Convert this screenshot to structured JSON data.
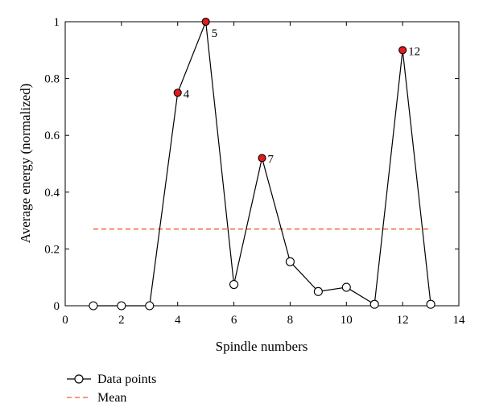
{
  "chart_data": {
    "type": "line",
    "xlabel": "Spindle numbers",
    "ylabel": "Average energy (normalized)",
    "xlim": [
      0,
      14
    ],
    "ylim": [
      0,
      1
    ],
    "xticks": [
      0,
      2,
      4,
      6,
      8,
      10,
      12,
      14
    ],
    "yticks": [
      0,
      0.2,
      0.4,
      0.6,
      0.8,
      1
    ],
    "xtick_labels": [
      "0",
      "2",
      "4",
      "6",
      "8",
      "10",
      "12",
      "14"
    ],
    "ytick_labels": [
      "0",
      "0.2",
      "0.4",
      "0.6",
      "0.8",
      "1"
    ],
    "grid": false,
    "legend_position": "bottom-left, below plot",
    "series": [
      {
        "name": "Data points",
        "color": "#000000",
        "marker": "open-circle",
        "x": [
          1,
          2,
          3,
          4,
          5,
          6,
          7,
          8,
          9,
          10,
          11,
          12,
          13
        ],
        "y": [
          0,
          0,
          0,
          0.75,
          1.0,
          0.075,
          0.52,
          0.155,
          0.05,
          0.065,
          0.005,
          0.9,
          0.005
        ]
      },
      {
        "name": "Mean",
        "color": "#f05a28",
        "style": "dashed",
        "x": [
          1,
          13
        ],
        "y": [
          0.27,
          0.27
        ]
      }
    ],
    "highlighted_points": [
      {
        "x": 4,
        "y": 0.75,
        "label": "4"
      },
      {
        "x": 5,
        "y": 1.0,
        "label": "5"
      },
      {
        "x": 7,
        "y": 0.52,
        "label": "7"
      },
      {
        "x": 12,
        "y": 0.9,
        "label": "12"
      }
    ],
    "highlight_color": "#e41a1c"
  }
}
